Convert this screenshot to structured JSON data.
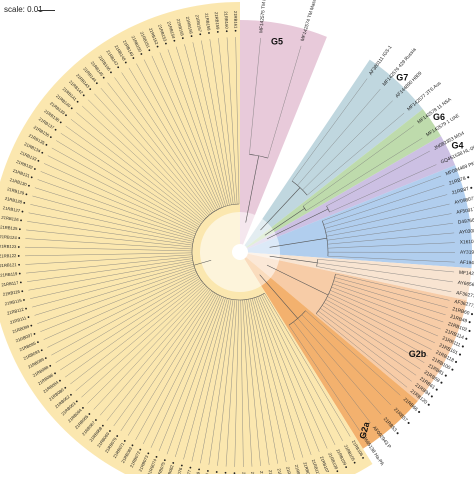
{
  "scale": {
    "label": "scale: 0.01"
  },
  "clades": [
    {
      "name": "G5",
      "color": "#e6c4d6",
      "tips": [
        "MF142575 TM Massa",
        "MF142574 TM Massa"
      ]
    },
    {
      "name": "G7",
      "color": "#b9d3dc",
      "tips": [
        "AF380111 IGS-1",
        "MF142576 429 Russia",
        "AF144890 H809",
        "MF142577 3TS Aus"
      ]
    },
    {
      "name": "G6",
      "color": "#b7d7a3",
      "tips": [
        "MF142578 11 NSA",
        "MF142579 1 UAE"
      ]
    },
    {
      "name": "G4",
      "color": "#c7b9e0",
      "tips": [
        "JN082353 MG4",
        "GQ451538 HL-0504"
      ]
    },
    {
      "name": "",
      "color": "#a9c9ec",
      "tips": [
        "MF084489 PK2",
        "21RB78 ●",
        "21RB87 ●",
        "AY098071 Gx",
        "AF509176 Chhp",
        "D49766 OKY34",
        "AY030848 Lukert",
        "X16107 Cu-1",
        "AY319768 NB",
        "AF194430 D78"
      ]
    },
    {
      "name": "",
      "color": "#f7e1cc",
      "tips": [
        "MF142583 Ohio",
        "AY665653 CS",
        "AF362776 T1"
      ]
    },
    {
      "name": "G2b",
      "color": "#f6c79d",
      "tips": [
        "AF362771 T100",
        "21RB60 ●",
        "21RB49 ●",
        "21RB102 ●",
        "21RB114 ●",
        "21RB111 ●",
        "21RB101 ●",
        "21RB118 ●",
        "21RB100 ●",
        "21RB81 ●",
        "21RB59 ●",
        "21RB61 ●",
        "21RB94 ●",
        "21RB120 ●"
      ]
    },
    {
      "name": "G2a",
      "color": "#f2a95e",
      "tips": [
        "21RB66 ●",
        "21RB57 ●",
        "21RB53 ●",
        "AF092943 P",
        "FJ695138 Ha-PA"
      ]
    },
    {
      "name": "",
      "color": "#fbe4a6",
      "tips": [
        "21RB106 ●",
        "21RB105 ●",
        "21RB109 ●",
        "21RB108 ●",
        "21RB107 ●",
        "21RB113 ●",
        "21RB090 ●",
        "21RB091 ●",
        "21RB078 ●",
        "21RB092 ●",
        "21RB103 ●",
        "21RB110 ●",
        "21RB098 ●",
        "21RB096 ●",
        "21RB081 ●",
        "21RB087 ●",
        "21RB085 ●",
        "21RB104 ●",
        "21RB079 ●",
        "21RB077 ●",
        "21RB076 ●",
        "21RB082 ●",
        "21RB075 ●",
        "21RB074 ●",
        "21RB073 ●",
        "21RB072 ●",
        "21RB083 ●",
        "21RB071 ●",
        "21RB070 ●",
        "21RB069 ●",
        "21RB068 ●",
        "21RB067 ●",
        "21RB065 ●",
        "21RB064 ●",
        "21RB063 ●",
        "21RB062 ●",
        "21RB080 ●",
        "21RB084 ●",
        "21RB086 ●",
        "21RB088 ●",
        "21RB089 ●",
        "21RB093 ●",
        "21RB095 ●",
        "21RB097 ●",
        "21RB099 ●",
        "21RB111 ●",
        "21RB112 ●",
        "21RB115 ●",
        "21RB116 ●",
        "21RB117 ●",
        "21RB119 ●",
        "21RB121 ●",
        "21RB122 ●",
        "21RB123 ●",
        "21RB124 ●",
        "21RB125 ●",
        "21RB126 ●",
        "21RB127 ●",
        "21RB128 ●",
        "21RB129 ●",
        "21RB130 ●",
        "21RB131 ●",
        "21RB132 ●",
        "21RB133 ●",
        "21RB134 ●",
        "21RB135 ●",
        "21RB136 ●",
        "21RB137 ●",
        "21RB138 ●",
        "21RB139 ●",
        "21RB140 ●",
        "21RB141 ●",
        "21RB142 ●",
        "21RB143 ●",
        "21RB144 ●",
        "21RB145 ●",
        "21RB146 ●",
        "21RB147 ●",
        "21RB148 ●",
        "21RB149 ●",
        "21RB150 ●",
        "21RB151 ●",
        "21RB152 ●",
        "21RB153 ●",
        "21RB154 ●",
        "21RB155 ●",
        "21RB156 ●",
        "21RB157 ●",
        "21RB158 ●",
        "21RB159 ●",
        "21RB160 ●",
        "21RB161 ●"
      ]
    }
  ]
}
